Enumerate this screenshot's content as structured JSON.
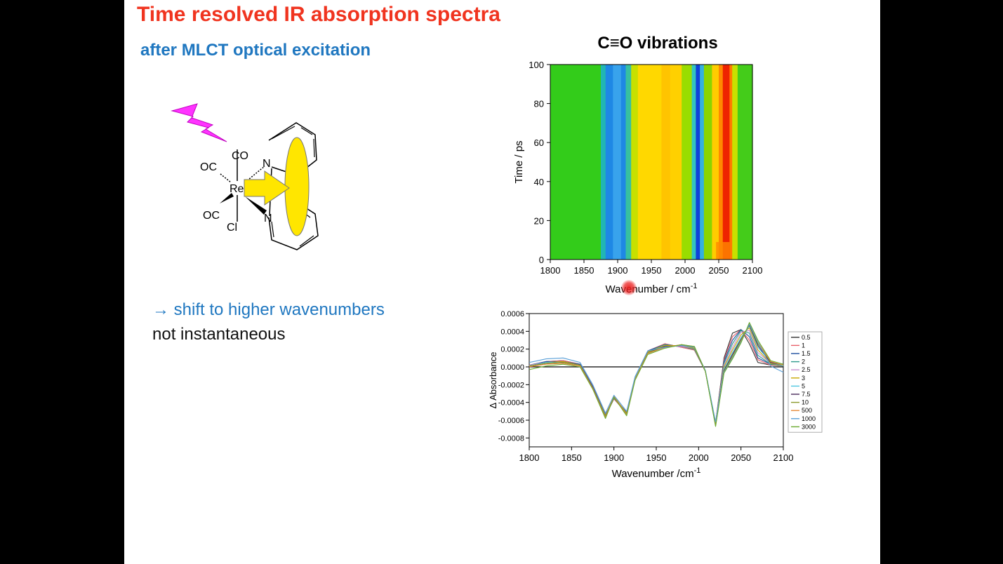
{
  "slide": {
    "title": "Time resolved IR absorption spectra",
    "subtitle": "after MLCT optical excitation",
    "notes": [
      "→ shift to higher wavenumbers",
      "not instantaneous"
    ]
  },
  "molecule": {
    "labels": [
      "CO",
      "OC",
      "Re",
      "OC",
      "Cl",
      "N",
      "N"
    ],
    "flash_color": "#ff33ff",
    "arrow_color": "#ffe600",
    "ellipse_color": "#ffe600"
  },
  "chart_data": [
    {
      "type": "heatmap",
      "title": "C≡O vibrations",
      "xlabel": "Wavenumber / cm",
      "xlabel_superscript": "-1",
      "ylabel": "Time / ps",
      "xlim": [
        1800,
        2100
      ],
      "ylim": [
        0,
        100
      ],
      "xticks": [
        1800,
        1850,
        1900,
        1950,
        2000,
        2050,
        2100
      ],
      "yticks": [
        0,
        20,
        40,
        60,
        80,
        100
      ],
      "bands": [
        {
          "from": 1800,
          "to": 1875,
          "color": "#33cc1a"
        },
        {
          "from": 1875,
          "to": 1882,
          "color": "#21b6b4"
        },
        {
          "from": 1882,
          "to": 1893,
          "color": "#1e88e5"
        },
        {
          "from": 1893,
          "to": 1905,
          "color": "#38a3ec"
        },
        {
          "from": 1905,
          "to": 1912,
          "color": "#1e88e5"
        },
        {
          "from": 1912,
          "to": 1920,
          "color": "#37c0a0"
        },
        {
          "from": 1920,
          "to": 1930,
          "color": "#c8e000"
        },
        {
          "from": 1930,
          "to": 1965,
          "color": "#ffd800"
        },
        {
          "from": 1965,
          "to": 1978,
          "color": "#ffc400"
        },
        {
          "from": 1978,
          "to": 1995,
          "color": "#ffd000"
        },
        {
          "from": 1995,
          "to": 2010,
          "color": "#99dd00"
        },
        {
          "from": 2010,
          "to": 2016,
          "color": "#33c3c0"
        },
        {
          "from": 2016,
          "to": 2022,
          "color": "#1040d8"
        },
        {
          "from": 2022,
          "to": 2028,
          "color": "#33b0e0"
        },
        {
          "from": 2028,
          "to": 2040,
          "color": "#8ad400"
        },
        {
          "from": 2040,
          "to": 2050,
          "color": "#ffcc00"
        },
        {
          "from": 2050,
          "to": 2056,
          "color": "#ff8800"
        },
        {
          "from": 2056,
          "to": 2066,
          "color": "#ee2200"
        },
        {
          "from": 2066,
          "to": 2070,
          "color": "#ff7a00"
        },
        {
          "from": 2070,
          "to": 2078,
          "color": "#c8e000"
        },
        {
          "from": 2078,
          "to": 2100,
          "color": "#44cc1a"
        }
      ],
      "early_time_band": {
        "from_time": 0,
        "to_time": 9,
        "color": "#ff8800"
      }
    },
    {
      "type": "line",
      "xlabel": "Wavenumber /cm",
      "xlabel_superscript": "-1",
      "ylabel": "Δ Absorbance",
      "xlim": [
        1800,
        2100
      ],
      "ylim": [
        -0.0009,
        0.0006
      ],
      "xticks": [
        1800,
        1850,
        1900,
        1950,
        2000,
        2050,
        2100
      ],
      "yticks": [
        -0.0008,
        -0.0006,
        -0.0004,
        -0.0002,
        0,
        0.0002,
        0.0004,
        0.0006
      ],
      "ytick_labels": [
        "-0.0008",
        "-0.0006",
        "-0.0004",
        "-0.0002",
        "0.0000",
        "0.0002",
        "0.0004",
        "0.0006"
      ],
      "x": [
        1800,
        1820,
        1840,
        1860,
        1875,
        1890,
        1900,
        1915,
        1925,
        1940,
        1960,
        1980,
        1995,
        2008,
        2020,
        2030,
        2040,
        2050,
        2060,
        2070,
        2085,
        2100
      ],
      "legend_position": "right",
      "series": [
        {
          "name": "0.5",
          "color": "#333333",
          "values": [
            2e-05,
            6e-05,
            7e-05,
            3e-05,
            -0.00022,
            -0.00055,
            -0.00036,
            -0.00052,
            -0.00012,
            0.00018,
            0.00026,
            0.00022,
            0.00019,
            -5e-05,
            -0.00063,
            0.0001,
            0.00038,
            0.00042,
            0.00026,
            5e-05,
            2e-05,
            1e-05
          ]
        },
        {
          "name": "1",
          "color": "#e8606a",
          "values": [
            2e-05,
            6e-05,
            7e-05,
            3e-05,
            -0.00022,
            -0.00054,
            -0.00036,
            -0.00052,
            -0.00012,
            0.00018,
            0.00026,
            0.00022,
            0.00019,
            -5e-05,
            -0.00063,
            8e-05,
            0.00034,
            0.00042,
            0.0003,
            8e-05,
            2e-05,
            1e-05
          ]
        },
        {
          "name": "1.5",
          "color": "#1f4fa0",
          "values": [
            2e-05,
            6e-05,
            6e-05,
            3e-05,
            -0.00022,
            -0.00054,
            -0.00035,
            -0.00051,
            -0.00012,
            0.00018,
            0.00025,
            0.00023,
            0.0002,
            -5e-05,
            -0.00064,
            6e-05,
            0.0003,
            0.00042,
            0.00034,
            0.0001,
            3e-05,
            1e-05
          ]
        },
        {
          "name": "2",
          "color": "#2e9a8c",
          "values": [
            2e-05,
            5e-05,
            6e-05,
            2e-05,
            -0.00023,
            -0.00055,
            -0.00035,
            -0.00052,
            -0.00013,
            0.00017,
            0.00025,
            0.00023,
            0.0002,
            -5e-05,
            -0.00064,
            4e-05,
            0.00026,
            0.00041,
            0.00038,
            0.00013,
            3e-05,
            1e-05
          ]
        },
        {
          "name": "2.5",
          "color": "#c98fd0",
          "values": [
            2e-05,
            5e-05,
            6e-05,
            2e-05,
            -0.00023,
            -0.00055,
            -0.00034,
            -0.00052,
            -0.00013,
            0.00017,
            0.00024,
            0.00023,
            0.00021,
            -5e-05,
            -0.00064,
            2e-05,
            0.00022,
            0.00039,
            0.00041,
            0.00016,
            4e-05,
            1e-05
          ]
        },
        {
          "name": "3",
          "color": "#c8a800",
          "values": [
            1e-05,
            5e-05,
            6e-05,
            2e-05,
            -0.00023,
            -0.00055,
            -0.00034,
            -0.00052,
            -0.00013,
            0.00017,
            0.00024,
            0.00024,
            0.00021,
            -5e-05,
            -0.00065,
            0.0,
            0.00019,
            0.00036,
            0.00044,
            0.00019,
            4e-05,
            1e-05
          ]
        },
        {
          "name": "5",
          "color": "#4fc6e0",
          "values": [
            1e-05,
            5e-05,
            5e-05,
            2e-05,
            -0.00023,
            -0.00056,
            -0.00034,
            -0.00053,
            -0.00013,
            0.00016,
            0.00023,
            0.00024,
            0.00022,
            -5e-05,
            -0.00065,
            -2e-05,
            0.00016,
            0.00033,
            0.00046,
            0.00022,
            5e-05,
            1e-05
          ]
        },
        {
          "name": "7.5",
          "color": "#4a2a5a",
          "values": [
            1e-05,
            4e-05,
            5e-05,
            2e-05,
            -0.00023,
            -0.00056,
            -0.00033,
            -0.00053,
            -0.00014,
            0.00016,
            0.00023,
            0.00024,
            0.00022,
            -5e-05,
            -0.00065,
            -4e-05,
            0.00014,
            0.00031,
            0.00047,
            0.00024,
            5e-05,
            2e-05
          ]
        },
        {
          "name": "10",
          "color": "#8a9a2a",
          "values": [
            1e-05,
            4e-05,
            5e-05,
            2e-05,
            -0.00024,
            -0.00056,
            -0.00033,
            -0.00053,
            -0.00014,
            0.00016,
            0.00022,
            0.00025,
            0.00022,
            -5e-05,
            -0.00066,
            -5e-05,
            0.00012,
            0.0003,
            0.00048,
            0.00026,
            6e-05,
            2e-05
          ]
        },
        {
          "name": "500",
          "color": "#e58a3a",
          "values": [
            0.0,
            3e-05,
            4e-05,
            1e-05,
            -0.00024,
            -0.00057,
            -0.00033,
            -0.00054,
            -0.00014,
            0.00015,
            0.00022,
            0.00025,
            0.00023,
            -5e-05,
            -0.00066,
            -6e-05,
            0.0001,
            0.00028,
            0.00049,
            0.00028,
            6e-05,
            2e-05
          ]
        },
        {
          "name": "1000",
          "color": "#5aa0d8",
          "values": [
            5e-05,
            9e-05,
            0.0001,
            5e-05,
            -0.0002,
            -0.00052,
            -0.00032,
            -0.0005,
            -0.00011,
            0.00018,
            0.00022,
            0.00024,
            0.00022,
            -4e-05,
            -0.00062,
            -6e-05,
            0.0001,
            0.00028,
            0.00048,
            0.00028,
            1e-05,
            -6e-05
          ]
        },
        {
          "name": "3000",
          "color": "#6aaa30",
          "values": [
            -3e-05,
            1e-05,
            3e-05,
            0.0,
            -0.00025,
            -0.00058,
            -0.00034,
            -0.00055,
            -0.00015,
            0.00014,
            0.00021,
            0.00025,
            0.00023,
            -5e-05,
            -0.00067,
            -7e-05,
            9e-05,
            0.00027,
            0.0005,
            0.0003,
            7e-05,
            3e-05
          ]
        }
      ]
    }
  ]
}
